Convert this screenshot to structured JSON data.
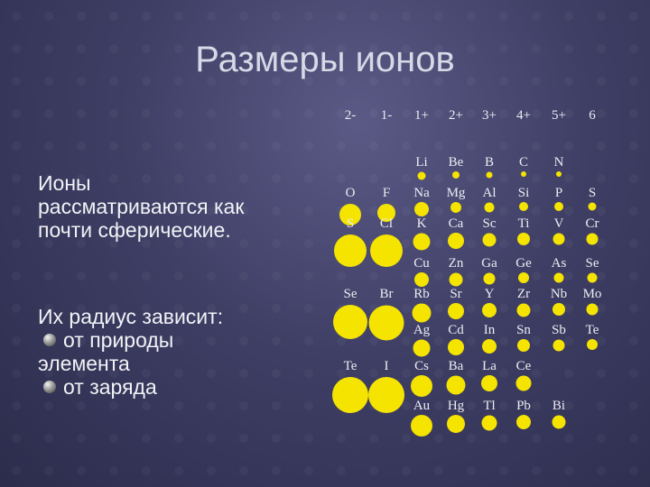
{
  "title": "Размеры ионов",
  "left_text": {
    "line1": "Ионы",
    "line2": "рассматриваются   как",
    "line3": "почти сферические.",
    "line4": "Их радиус зависит:",
    "bullet1": "от  природы",
    "line5": "элемента",
    "bullet2": "от заряда"
  },
  "charges": [
    "2-",
    "1-",
    "1+",
    "2+",
    "3+",
    "4+",
    "5+",
    "6"
  ],
  "ions": [
    {
      "symbol": "O",
      "charge": "2-",
      "row": 1
    },
    {
      "symbol": "F",
      "charge": "1-",
      "row": 1
    },
    {
      "symbol": "S",
      "charge": "2-",
      "row": 2
    },
    {
      "symbol": "Cl",
      "charge": "1-",
      "row": 2
    },
    {
      "symbol": "Se",
      "charge": "2-",
      "row": 4
    },
    {
      "symbol": "Br",
      "charge": "1-",
      "row": 4
    },
    {
      "symbol": "Te",
      "charge": "2-",
      "row": 6
    },
    {
      "symbol": "I",
      "charge": "1-",
      "row": 6
    },
    {
      "symbol": "Li",
      "charge": "1+",
      "row": 0
    },
    {
      "symbol": "Be",
      "charge": "2+",
      "row": 0
    },
    {
      "symbol": "B",
      "charge": "3+",
      "row": 0
    },
    {
      "symbol": "C",
      "charge": "4+",
      "row": 0
    },
    {
      "symbol": "N",
      "charge": "5+",
      "row": 0
    },
    {
      "symbol": "Na",
      "charge": "1+",
      "row": 1
    },
    {
      "symbol": "Mg",
      "charge": "2+",
      "row": 1
    },
    {
      "symbol": "Al",
      "charge": "3+",
      "row": 1
    },
    {
      "symbol": "Si",
      "charge": "4+",
      "row": 1
    },
    {
      "symbol": "P",
      "charge": "5+",
      "row": 1
    },
    {
      "symbol": "S",
      "charge": "6",
      "row": 1
    },
    {
      "symbol": "K",
      "charge": "1+",
      "row": 2
    },
    {
      "symbol": "Ca",
      "charge": "2+",
      "row": 2
    },
    {
      "symbol": "Sc",
      "charge": "3+",
      "row": 2
    },
    {
      "symbol": "Ti",
      "charge": "4+",
      "row": 2
    },
    {
      "symbol": "V",
      "charge": "5+",
      "row": 2
    },
    {
      "symbol": "Cr",
      "charge": "6",
      "row": 2
    },
    {
      "symbol": "Cu",
      "charge": "1+",
      "row": 3
    },
    {
      "symbol": "Zn",
      "charge": "2+",
      "row": 3
    },
    {
      "symbol": "Ga",
      "charge": "3+",
      "row": 3
    },
    {
      "symbol": "Ge",
      "charge": "4+",
      "row": 3
    },
    {
      "symbol": "As",
      "charge": "5+",
      "row": 3
    },
    {
      "symbol": "Se",
      "charge": "6",
      "row": 3
    },
    {
      "symbol": "Rb",
      "charge": "1+",
      "row": 4
    },
    {
      "symbol": "Sr",
      "charge": "2+",
      "row": 4
    },
    {
      "symbol": "Y",
      "charge": "3+",
      "row": 4
    },
    {
      "symbol": "Zr",
      "charge": "4+",
      "row": 4
    },
    {
      "symbol": "Nb",
      "charge": "5+",
      "row": 4
    },
    {
      "symbol": "Mo",
      "charge": "6",
      "row": 4
    },
    {
      "symbol": "Ag",
      "charge": "1+",
      "row": 5
    },
    {
      "symbol": "Cd",
      "charge": "2+",
      "row": 5
    },
    {
      "symbol": "In",
      "charge": "3+",
      "row": 5
    },
    {
      "symbol": "Sn",
      "charge": "4+",
      "row": 5
    },
    {
      "symbol": "Sb",
      "charge": "5+",
      "row": 5
    },
    {
      "symbol": "Te",
      "charge": "6",
      "row": 5
    },
    {
      "symbol": "Cs",
      "charge": "1+",
      "row": 6
    },
    {
      "symbol": "Ba",
      "charge": "2+",
      "row": 6
    },
    {
      "symbol": "La",
      "charge": "3+",
      "row": 6
    },
    {
      "symbol": "Ce",
      "charge": "4+",
      "row": 6
    },
    {
      "symbol": "Au",
      "charge": "1+",
      "row": 7
    },
    {
      "symbol": "Hg",
      "charge": "2+",
      "row": 7
    },
    {
      "symbol": "Tl",
      "charge": "3+",
      "row": 7
    },
    {
      "symbol": "Pb",
      "charge": "4+",
      "row": 7
    },
    {
      "symbol": "Bi",
      "charge": "5+",
      "row": 7
    }
  ],
  "colors": {
    "ion": "#f5e400",
    "background": "#3f3f66",
    "text": "#f2f2f6"
  }
}
